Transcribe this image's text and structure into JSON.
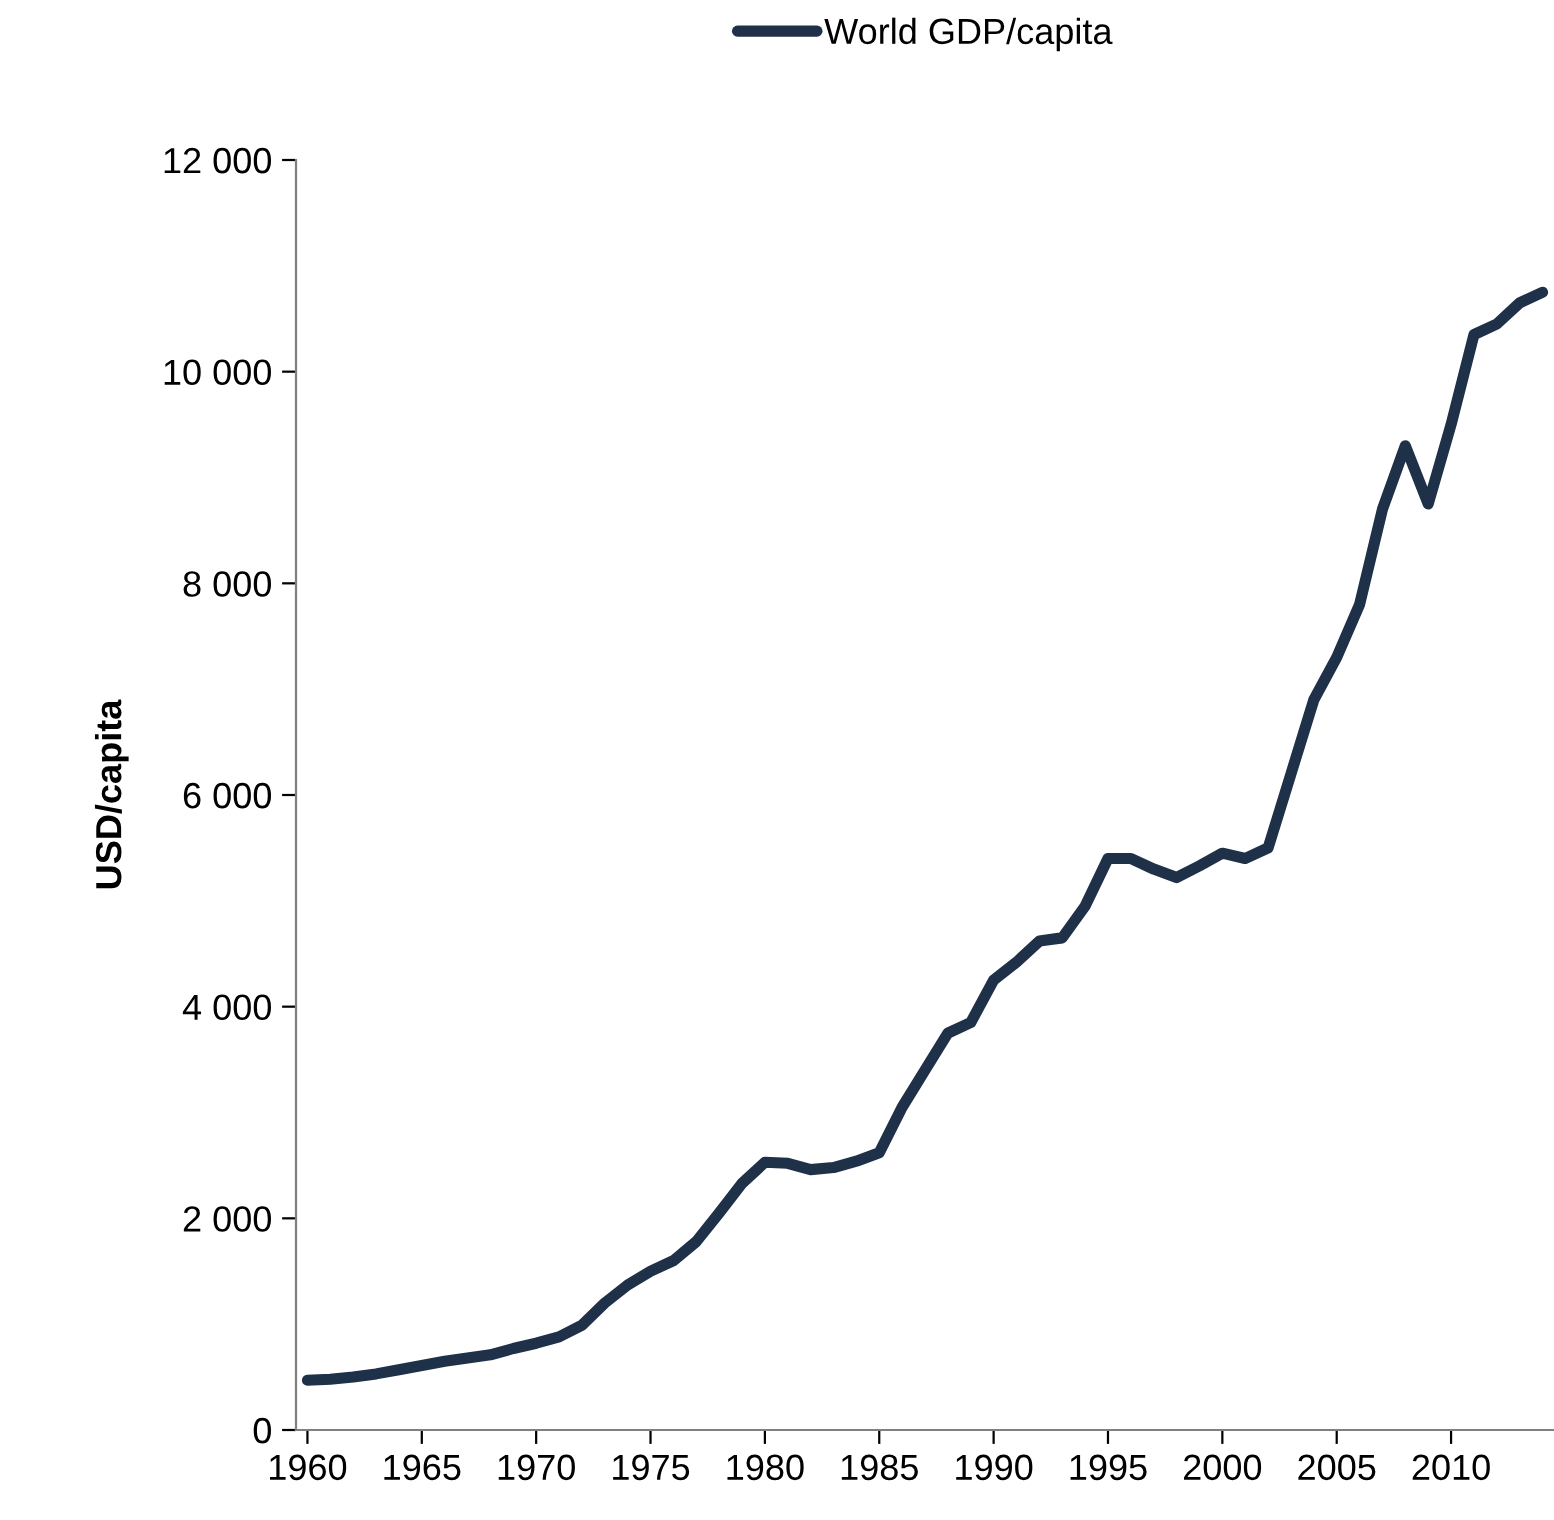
{
  "chart_data": {
    "type": "line",
    "ylabel": "USD/capita",
    "categories": [
      "1960",
      null,
      null,
      null,
      null,
      "1965",
      null,
      null,
      null,
      null,
      "1970",
      null,
      null,
      null,
      null,
      "1975",
      null,
      null,
      null,
      null,
      "1980",
      null,
      null,
      null,
      null,
      "1985",
      null,
      null,
      null,
      null,
      "1990",
      null,
      null,
      null,
      null,
      "1995",
      null,
      null,
      null,
      null,
      "2000",
      null,
      null,
      null,
      null,
      "2005",
      null,
      null,
      null,
      null,
      "2010",
      null,
      null,
      null,
      null
    ],
    "series": [
      {
        "name": "World GDP/capita",
        "color": "#1f3049",
        "values": [
          470,
          480,
          500,
          530,
          570,
          610,
          650,
          680,
          710,
          770,
          820,
          880,
          990,
          1200,
          1370,
          1500,
          1600,
          1780,
          2050,
          2330,
          2530,
          2520,
          2460,
          2480,
          2540,
          2620,
          3050,
          3400,
          3750,
          3850,
          4250,
          4420,
          4620,
          4650,
          4950,
          5400,
          5400,
          5300,
          5220,
          5330,
          5450,
          5400,
          5500,
          6200,
          6900,
          7300,
          7800,
          8700,
          9300,
          8750,
          9500,
          10350,
          10450,
          10650,
          10750
        ]
      }
    ],
    "ylim": [
      0,
      12000
    ],
    "yticks": [
      0,
      {
        "value": 2000,
        "label": "2 000"
      },
      {
        "value": 4000,
        "label": "4 000"
      },
      {
        "value": 6000,
        "label": "6 000"
      },
      {
        "value": 8000,
        "label": "8 000"
      },
      {
        "value": 10000,
        "label": "10 000"
      },
      {
        "value": 12000,
        "label": "12 000"
      }
    ],
    "grid": false,
    "legend": "top",
    "marker": "none",
    "line_style": "solid"
  }
}
